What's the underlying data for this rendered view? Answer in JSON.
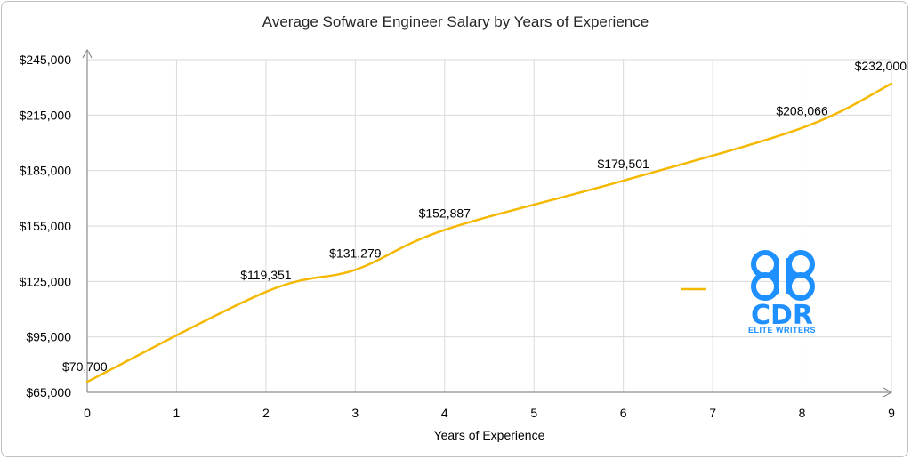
{
  "chart_data": {
    "type": "line",
    "title": "Average Sofware Engineer Salary by Years of Experience",
    "xlabel": "Years of Experience",
    "ylabel": "",
    "x": [
      0,
      2,
      3,
      4,
      6,
      8,
      9
    ],
    "series": [
      {
        "values": [
          70700,
          119351,
          131279,
          152887,
          179501,
          208066,
          232000
        ],
        "labels": [
          "$70,700",
          "$119,351",
          "$131,279",
          "$152,887",
          "$179,501",
          "$208,066",
          "$232,000"
        ],
        "color": "#f5b800"
      }
    ],
    "xlim": [
      0,
      9
    ],
    "ylim": [
      65000,
      245000
    ],
    "xticks": [
      "0",
      "1",
      "2",
      "3",
      "4",
      "5",
      "6",
      "7",
      "8",
      "9"
    ],
    "yticks": [
      "$65,000",
      "$95,000",
      "$125,000",
      "$155,000",
      "$185,000",
      "$215,000",
      "$245,000"
    ],
    "grid": true,
    "legend": "right"
  },
  "logo": {
    "text": "CDR",
    "subtext": "ELITE WRITERS",
    "color": "#1e90ff"
  }
}
